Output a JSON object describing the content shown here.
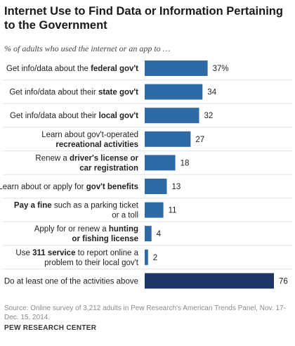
{
  "title": "Internet Use to Find Data or Information Pertaining to the Government",
  "subtitle": "% of adults who used the internet or an app to …",
  "source": "Source: Online survey of 3,212 adults in Pew Research's American Trends Panel, Nov. 17-Dec. 15, 2014.",
  "brand": "PEW RESEARCH CENTER",
  "colors": {
    "bar": "#2e6aa6",
    "bar_highlight": "#1c3466"
  },
  "chart_data": {
    "type": "bar",
    "orientation": "horizontal",
    "categories": [
      "Get info/data about the federal gov't",
      "Get info/data about their state gov't",
      "Get info/data about their local gov't",
      "Learn about gov't-operated recreational activities",
      "Renew a driver's license or car registration",
      "Learn about or apply for gov't benefits",
      "Pay a fine such as a parking ticket or a toll",
      "Apply for or renew a hunting or fishing license",
      "Use 311 service to report online a problem to their local gov't",
      "Do at least one of the activities above"
    ],
    "category_lines": [
      [
        [
          [
            "Get info/data about the ",
            false
          ],
          [
            "federal gov't",
            true
          ]
        ]
      ],
      [
        [
          [
            "Get info/data about their ",
            false
          ],
          [
            "state gov't",
            true
          ]
        ]
      ],
      [
        [
          [
            "Get info/data about their ",
            false
          ],
          [
            "local gov't",
            true
          ]
        ]
      ],
      [
        [
          [
            "Learn about gov't-operated",
            false
          ]
        ],
        [
          [
            "recreational activities",
            true
          ]
        ]
      ],
      [
        [
          [
            "Renew a ",
            false
          ],
          [
            "driver's license or",
            true
          ]
        ],
        [
          [
            "car registration",
            true
          ]
        ]
      ],
      [
        [
          [
            "Learn about or apply for ",
            false
          ],
          [
            "gov't benefits",
            true
          ]
        ]
      ],
      [
        [
          [
            "Pay a fine",
            true
          ],
          [
            " such as a parking ticket",
            false
          ]
        ],
        [
          [
            "or a toll",
            false
          ]
        ]
      ],
      [
        [
          [
            "Apply for or renew a ",
            false
          ],
          [
            "hunting",
            true
          ]
        ],
        [
          [
            "or fishing license",
            true
          ]
        ]
      ],
      [
        [
          [
            "Use ",
            false
          ],
          [
            "311 service",
            true
          ],
          [
            " to report online a",
            false
          ]
        ],
        [
          [
            "problem to their local gov't",
            false
          ]
        ]
      ],
      [
        [
          [
            "Do at least one of the activities above",
            false
          ]
        ]
      ]
    ],
    "values": [
      37,
      34,
      32,
      27,
      18,
      13,
      11,
      4,
      2,
      76
    ],
    "value_labels": [
      "37%",
      "34",
      "32",
      "27",
      "18",
      "13",
      "11",
      "4",
      "2",
      "76"
    ],
    "highlight_index": 9,
    "xlim": [
      0,
      76
    ],
    "grid": false,
    "legend": "none"
  }
}
